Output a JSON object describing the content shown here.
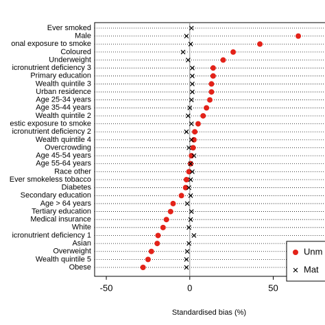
{
  "chart_data": {
    "type": "dot",
    "xlabel": "Standardised bias (%)",
    "categories": [
      "Ever smoked",
      "Male",
      "onal exposure to smoke",
      "Coloured",
      "Underweight",
      "icronutrient deficiency 3",
      "Primary education",
      "Wealth quintile 3",
      "Urban residence",
      "Age 25-34 years",
      "Age 35-44 years",
      "Wealth quintile 2",
      "estic exposure to smoke",
      "icronutrient deficiency 2",
      "Wealth quintile 4",
      "Overcrowding",
      "Age 45-54 years",
      "Age 55-64 years",
      "Race other",
      "Ever smokeless tobacco",
      "Diabetes",
      "Secondary education",
      "Age > 64 years",
      "Tertiary education",
      "Medical insurance",
      "White",
      "icronutrient deficiency 1",
      "Asian",
      "Overweight",
      "Wealth quintile 5",
      "Obese"
    ],
    "series": [
      {
        "name": "Unm",
        "color": "#e32219",
        "marker": "circle",
        "values": [
          null,
          65,
          42,
          26,
          20,
          14,
          14,
          13,
          13,
          12,
          10,
          8,
          5,
          3,
          2.5,
          2,
          1,
          0.5,
          -0.5,
          -2,
          -2.5,
          -5,
          -10,
          -11.5,
          -14,
          -16,
          -19,
          -19.5,
          -23,
          -25,
          -28
        ]
      },
      {
        "name": "Mat",
        "color": "#000000",
        "marker": "x",
        "values": [
          1,
          -2,
          0.5,
          -4,
          -1,
          1.5,
          1.5,
          1.5,
          1.5,
          1,
          0,
          -1,
          1,
          -2,
          1,
          -0.5,
          2.5,
          0.5,
          1.5,
          0.5,
          -0.5,
          0.5,
          -1.5,
          1,
          0.5,
          -0.5,
          2.5,
          -0.5,
          -1.5,
          -2,
          -2
        ]
      }
    ],
    "xlim": [
      -57,
      81
    ],
    "xticks": [
      -50,
      0,
      50
    ],
    "grid": true
  }
}
